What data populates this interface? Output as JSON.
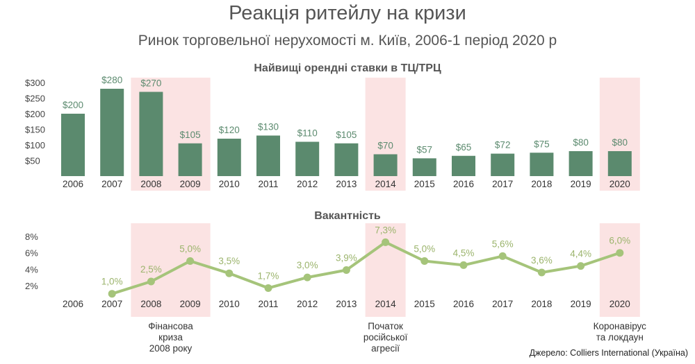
{
  "title": "Реакція ритейлу на кризи",
  "subtitle": "Ринок торговельної нерухомості м. Київ, 2006-1 період 2020 р",
  "source": "Джерело: Colliers International (Україна)",
  "colors": {
    "bar": "#5b8a6e",
    "bar_label": "#5b8a6e",
    "line": "#a5c47a",
    "line_label": "#9bb46c",
    "highlight": "#fbe3e3"
  },
  "chart_data": [
    {
      "type": "bar",
      "title": "Найвищі орендні ставки в ТЦ/ТРЦ",
      "categories": [
        "2006",
        "2007",
        "2008",
        "2009",
        "2010",
        "2011",
        "2012",
        "2013",
        "2014",
        "2015",
        "2016",
        "2017",
        "2018",
        "2019",
        "2020"
      ],
      "values": [
        200,
        280,
        270,
        105,
        120,
        130,
        110,
        105,
        70,
        57,
        65,
        72,
        75,
        80,
        80
      ],
      "value_labels": [
        "$200",
        "$280",
        "$270",
        "$105",
        "$120",
        "$130",
        "$110",
        "$105",
        "$70",
        "$57",
        "$65",
        "$72",
        "$75",
        "$80",
        "$80"
      ],
      "y_ticks": [
        50,
        100,
        150,
        200,
        250,
        300
      ],
      "y_tick_labels": [
        "$50",
        "$100",
        "$150",
        "$200",
        "$250",
        "$300"
      ],
      "ylim": [
        0,
        300
      ],
      "highlight_categories": [
        "2008",
        "2009",
        "2014",
        "2020"
      ]
    },
    {
      "type": "line",
      "title": "Вакантність",
      "categories": [
        "2006",
        "2007",
        "2008",
        "2009",
        "2010",
        "2011",
        "2012",
        "2013",
        "2014",
        "2015",
        "2016",
        "2017",
        "2018",
        "2019",
        "2020"
      ],
      "values": [
        null,
        1.0,
        2.5,
        5.0,
        3.5,
        1.7,
        3.0,
        3.9,
        7.3,
        5.0,
        4.5,
        5.6,
        3.6,
        4.4,
        6.0
      ],
      "value_labels": [
        "",
        "1,0%",
        "2,5%",
        "5,0%",
        "3,5%",
        "1,7%",
        "3,0%",
        "3,9%",
        "7,3%",
        "5,0%",
        "4,5%",
        "5,6%",
        "3,6%",
        "4,4%",
        "6,0%"
      ],
      "y_ticks": [
        2,
        4,
        6,
        8
      ],
      "y_tick_labels": [
        "2%",
        "4%",
        "6%",
        "8%"
      ],
      "ylim": [
        0,
        8
      ],
      "highlight_categories": [
        "2008",
        "2009",
        "2014",
        "2020"
      ]
    }
  ],
  "annotations": [
    {
      "year": "2008",
      "lines": [
        "Фінансова",
        "криза",
        "2008 року"
      ]
    },
    {
      "year": "2014",
      "lines": [
        "Початок",
        "російської",
        "агресії"
      ]
    },
    {
      "year": "2020",
      "lines": [
        "Коронавірус",
        "та локдаун"
      ]
    }
  ]
}
